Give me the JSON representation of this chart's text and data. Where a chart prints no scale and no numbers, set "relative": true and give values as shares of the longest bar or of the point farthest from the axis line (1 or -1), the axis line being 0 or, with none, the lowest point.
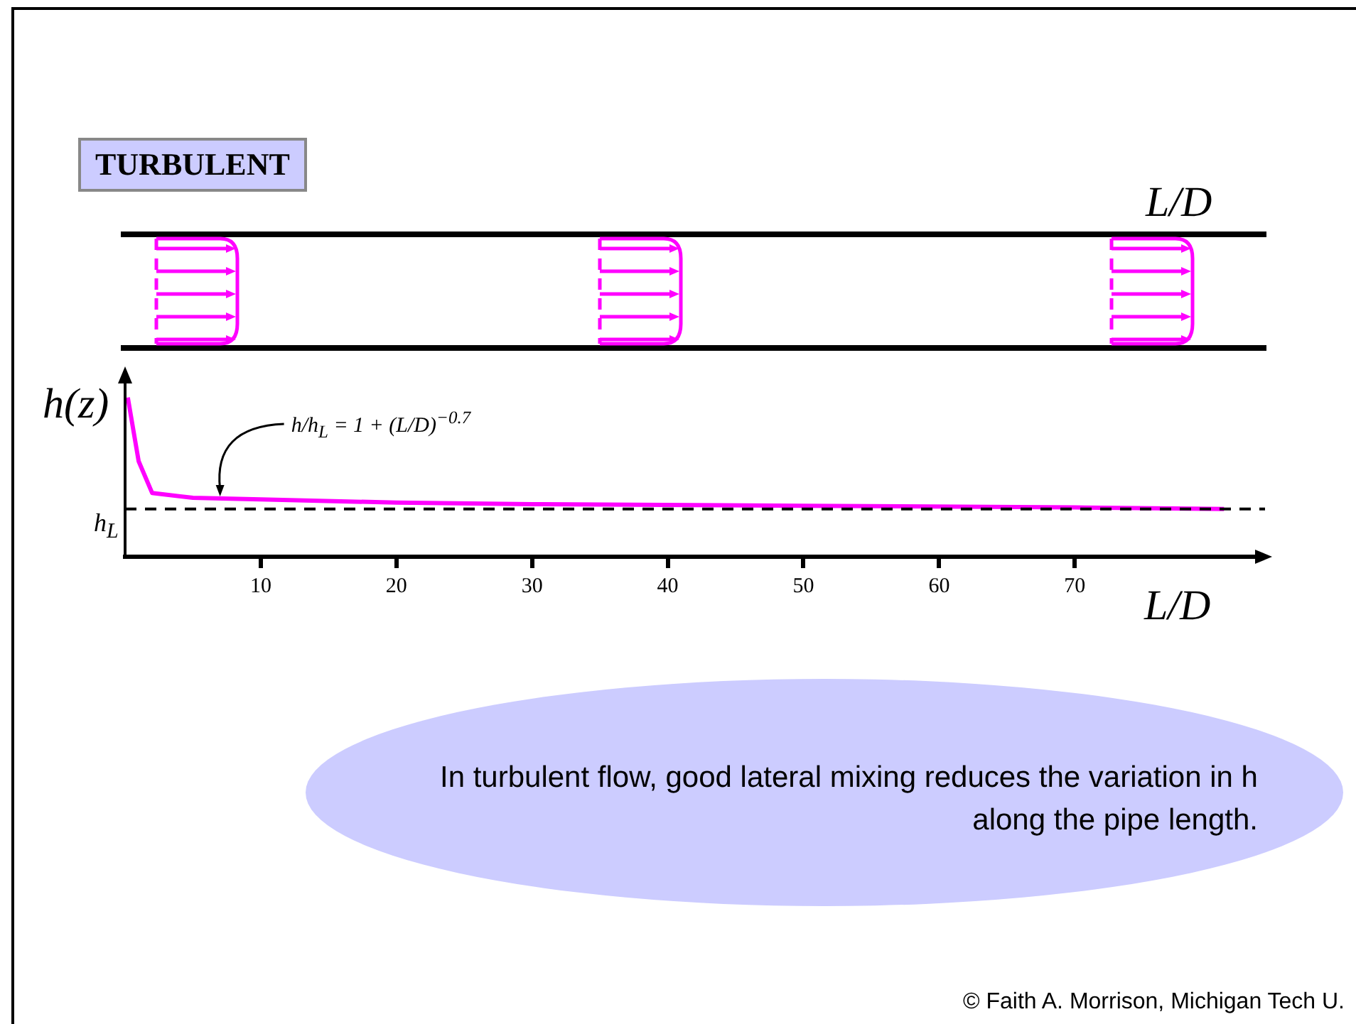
{
  "chart_data": {
    "type": "line",
    "title": "TURBULENT",
    "xlabel": "L/D",
    "ylabel": "h(z)",
    "relative": true,
    "x": [
      0.2,
      1,
      2,
      5,
      10,
      20,
      30,
      50,
      70,
      81
    ],
    "series": [
      {
        "color": "#ff00ff",
        "values": [
          1.0,
          0.6,
          0.4,
          0.37,
          0.36,
          0.34,
          0.33,
          0.32,
          0.31,
          0.3
        ]
      }
    ],
    "xlim": [
      0,
      83.5
    ],
    "xticks": [
      10,
      20,
      30,
      40,
      50,
      60,
      70
    ],
    "ref_lines": [
      {
        "axis": "y",
        "value": 0.3,
        "label": "h$_{L}$",
        "color": "#000000",
        "line_style": "dashed"
      }
    ],
    "annotations": [
      "L/D",
      {
        "text": "h/h$_{L}$ = 1 + (L/D)$^{−0.7}$",
        "x": 7,
        "y": 0.37
      },
      "In turbulent flow, good lateral mixing reduces the variation in h along the pipe length.",
      "© Faith A. Morrison, Michigan Tech U."
    ],
    "grid": false,
    "legend": false,
    "marker": "none",
    "line_style": "solid"
  }
}
